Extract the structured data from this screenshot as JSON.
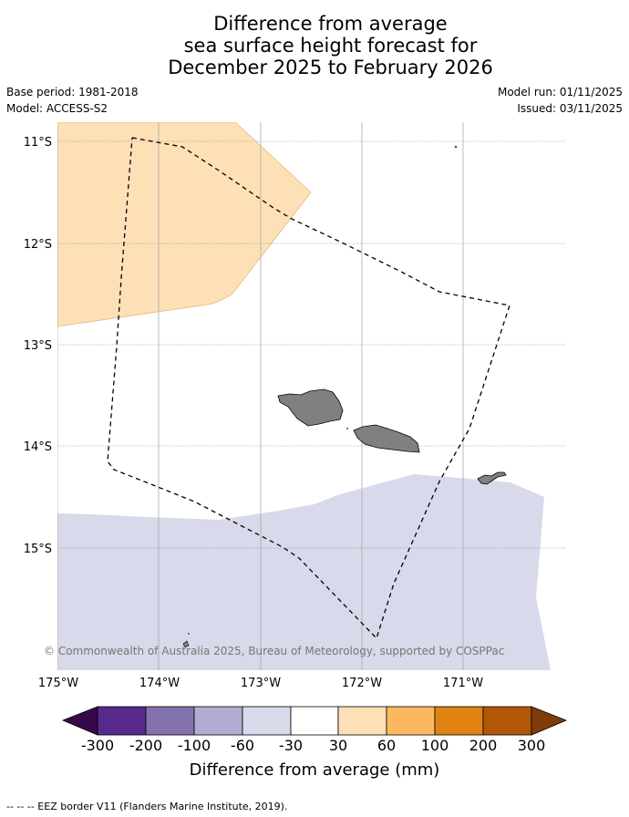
{
  "title": {
    "line1": "Difference from average",
    "line2": "sea surface height forecast for",
    "line3": "December 2025 to February 2026"
  },
  "meta": {
    "base_period": "Base period: 1981-2018",
    "model": "Model: ACCESS-S2",
    "model_run": "Model run: 01/11/2025",
    "issued": "Issued: 03/11/2025"
  },
  "map": {
    "lon_range": [
      -175,
      -170
    ],
    "lat_range": [
      -16.2,
      -10.8
    ],
    "lat_labels": [
      "11°S",
      "12°S",
      "13°S",
      "14°S",
      "15°S"
    ],
    "lon_labels": [
      "175°W",
      "174°W",
      "173°W",
      "172°W",
      "171°W"
    ],
    "regions": [
      {
        "name": "positive anomaly 30-60 mm",
        "color": "#fde0b6"
      },
      {
        "name": "negative anomaly -60 to -30 mm",
        "color": "#d8d9ea"
      }
    ],
    "islands": [
      "Savai'i",
      "Upolu",
      "Tutuila"
    ],
    "border_style": "dashed"
  },
  "copyright": "© Commonwealth of Australia 2025, Bureau of Meteorology, supported by COSPPac",
  "colorbar": {
    "title": "Difference from average (mm)",
    "labels": [
      "-300",
      "-200",
      "-100",
      "-60",
      "-30",
      "30",
      "60",
      "100",
      "200",
      "300"
    ],
    "colors": [
      "#35094a",
      "#582a8b",
      "#8472ad",
      "#b2abd2",
      "#d8d9ea",
      "#ffffff",
      "#fde0b6",
      "#fbb85f",
      "#e08212",
      "#b25707",
      "#7f3b08"
    ]
  },
  "footnote": "--  --  -- EEZ border V11 (Flanders Marine Institute, 2019)."
}
